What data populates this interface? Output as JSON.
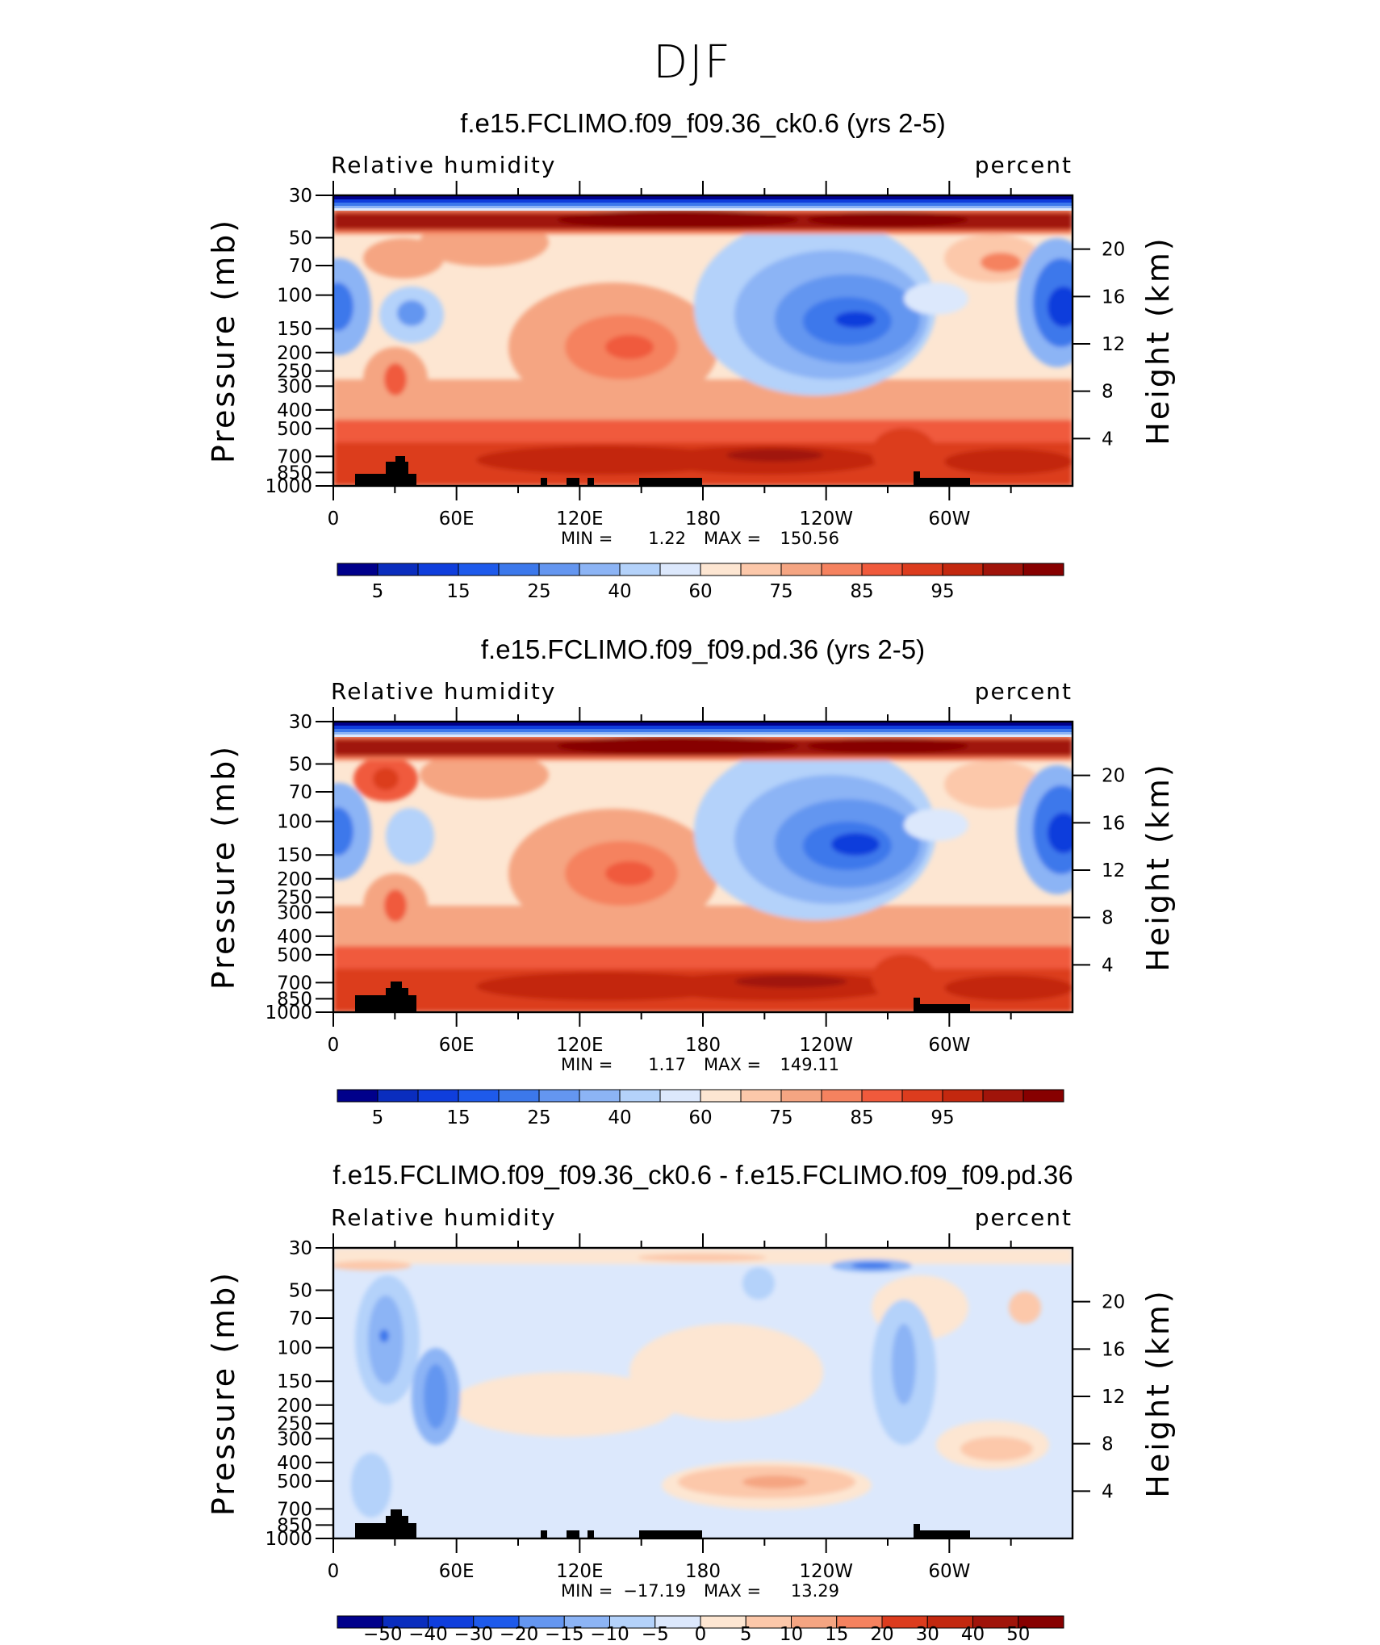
{
  "figure": {
    "title": "DJF",
    "field_label": "Relative humidity",
    "units_label": "percent",
    "y_left_label": "Pressure (mb)",
    "y_right_label": "Height (km)"
  },
  "colors": {
    "abs_palette": [
      "#00008b",
      "#0a2dbe",
      "#0f3edc",
      "#1e5aeb",
      "#3c78eb",
      "#6496f0",
      "#8cb4f5",
      "#b4d2fa",
      "#dce8fc",
      "#fde6d2",
      "#fcc8aa",
      "#f5a582",
      "#f5825f",
      "#f05a3c",
      "#dc3c1e",
      "#c3280f",
      "#a0140a",
      "#870000"
    ],
    "diff_palette": [
      "#00008b",
      "#0a2dbe",
      "#0f3edc",
      "#1e5aeb",
      "#3c78eb",
      "#6496f0",
      "#8cb4f5",
      "#b4d2fa",
      "#dce8fc",
      "#fde6d2",
      "#fcc8aa",
      "#f5a582",
      "#f5825f",
      "#f05a3c",
      "#dc3c1e",
      "#c3280f",
      "#a0140a",
      "#870000"
    ],
    "terrain": "#000000"
  },
  "chart_data": [
    {
      "type": "heatmap",
      "title": "f.e15.FCLIMO.f09_f09.36_ck0.6 (yrs 2-5)",
      "variable": "Relative humidity",
      "units": "percent",
      "x_ticks": [
        "0",
        "60E",
        "120E",
        "180",
        "120W",
        "60W"
      ],
      "y_ticks": [
        "30",
        "50",
        "70",
        "100",
        "150",
        "200",
        "250",
        "300",
        "400",
        "500",
        "700",
        "850",
        "1000"
      ],
      "y2_ticks": [
        "20",
        "16",
        "12",
        "8",
        "4"
      ],
      "xlim": [
        0,
        360
      ],
      "ylim": [
        1000,
        30
      ],
      "colorbar_labels": [
        "5",
        "15",
        "25",
        "40",
        "60",
        "75",
        "85",
        "95"
      ],
      "contour_levels": [
        5,
        10,
        15,
        20,
        25,
        30,
        40,
        50,
        60,
        65,
        75,
        80,
        85,
        90,
        95,
        100
      ],
      "min_label": "MIN =",
      "min_value": "1.22",
      "max_label": "MAX =",
      "max_value": "150.56"
    },
    {
      "type": "heatmap",
      "title": "f.e15.FCLIMO.f09_f09.pd.36 (yrs 2-5)",
      "variable": "Relative humidity",
      "units": "percent",
      "x_ticks": [
        "0",
        "60E",
        "120E",
        "180",
        "120W",
        "60W"
      ],
      "y_ticks": [
        "30",
        "50",
        "70",
        "100",
        "150",
        "200",
        "250",
        "300",
        "400",
        "500",
        "700",
        "850",
        "1000"
      ],
      "y2_ticks": [
        "20",
        "16",
        "12",
        "8",
        "4"
      ],
      "xlim": [
        0,
        360
      ],
      "ylim": [
        1000,
        30
      ],
      "colorbar_labels": [
        "5",
        "15",
        "25",
        "40",
        "60",
        "75",
        "85",
        "95"
      ],
      "contour_levels": [
        5,
        10,
        15,
        20,
        25,
        30,
        40,
        50,
        60,
        65,
        75,
        80,
        85,
        90,
        95,
        100
      ],
      "min_label": "MIN =",
      "min_value": "1.17",
      "max_label": "MAX =",
      "max_value": "149.11"
    },
    {
      "type": "heatmap",
      "title": "f.e15.FCLIMO.f09_f09.36_ck0.6 - f.e15.FCLIMO.f09_f09.pd.36",
      "variable": "Relative humidity",
      "units": "percent",
      "x_ticks": [
        "0",
        "60E",
        "120E",
        "180",
        "120W",
        "60W"
      ],
      "y_ticks": [
        "30",
        "50",
        "70",
        "100",
        "150",
        "200",
        "250",
        "300",
        "400",
        "500",
        "700",
        "850",
        "1000"
      ],
      "y2_ticks": [
        "20",
        "16",
        "12",
        "8",
        "4"
      ],
      "xlim": [
        0,
        360
      ],
      "ylim": [
        1000,
        30
      ],
      "colorbar_labels": [
        "−50",
        "−40",
        "−30",
        "−20",
        "−15",
        "−10",
        "−5",
        "0",
        "5",
        "10",
        "15",
        "20",
        "30",
        "40",
        "50"
      ],
      "contour_levels": [
        -60,
        -50,
        -40,
        -30,
        -20,
        -15,
        -10,
        -5,
        0,
        5,
        10,
        15,
        20,
        30,
        40,
        50,
        60
      ],
      "min_label": "MIN =",
      "min_value": "−17.19",
      "max_label": "MAX =",
      "max_value": "13.29"
    }
  ]
}
